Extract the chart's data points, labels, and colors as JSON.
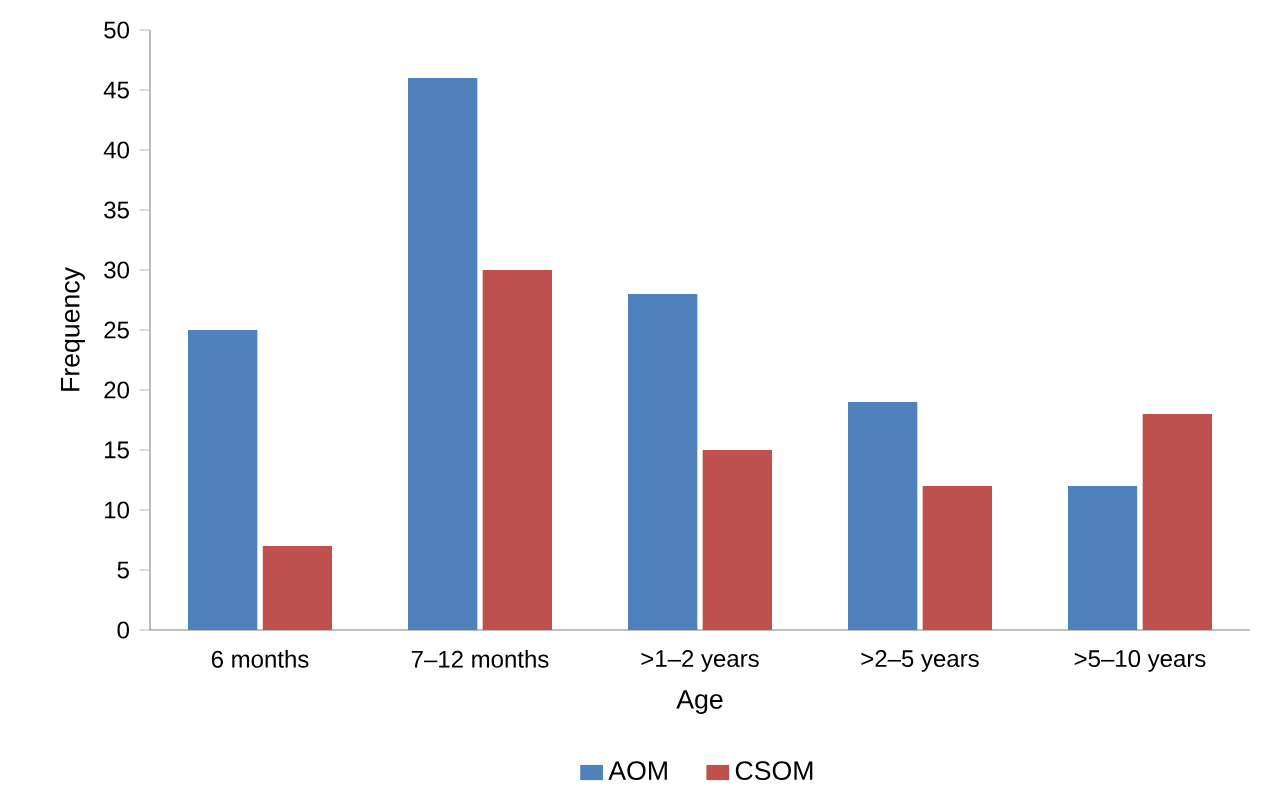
{
  "chart_data": {
    "type": "bar",
    "xlabel": "Age",
    "ylabel": "Frequency",
    "categories": [
      "6 months",
      "7–12 months",
      ">1–2 years",
      ">2–5 years",
      ">5–10 years"
    ],
    "series": [
      {
        "name": "AOM",
        "color": "#4f81bd",
        "values": [
          25,
          46,
          28,
          19,
          12
        ]
      },
      {
        "name": "CSOM",
        "color": "#c0504d",
        "values": [
          7,
          30,
          15,
          12,
          18
        ]
      }
    ],
    "ylim": [
      0,
      50
    ],
    "yticks": [
      0,
      5,
      10,
      15,
      20,
      25,
      30,
      35,
      40,
      45,
      50
    ],
    "grid": false,
    "legend": "bottom"
  }
}
